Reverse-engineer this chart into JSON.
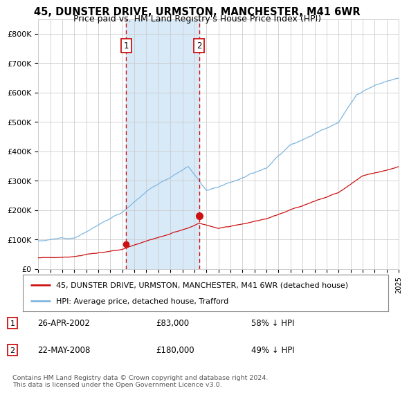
{
  "title": "45, DUNSTER DRIVE, URMSTON, MANCHESTER, M41 6WR",
  "subtitle": "Price paid vs. HM Land Registry's House Price Index (HPI)",
  "title_fontsize": 10.5,
  "subtitle_fontsize": 9,
  "x_start_year": 1995,
  "x_end_year": 2025,
  "ylim": [
    0,
    850000
  ],
  "yticks": [
    0,
    100000,
    200000,
    300000,
    400000,
    500000,
    600000,
    700000,
    800000
  ],
  "ytick_labels": [
    "£0",
    "£100K",
    "£200K",
    "£300K",
    "£400K",
    "£500K",
    "£600K",
    "£700K",
    "£800K"
  ],
  "transaction1": {
    "date_year": 2002.32,
    "price": 83000,
    "label": "1"
  },
  "transaction2": {
    "date_year": 2008.39,
    "price": 180000,
    "label": "2"
  },
  "hpi_line_color": "#7eb6e0",
  "price_line_color": "#cc1111",
  "shade_color": "#d8eaf8",
  "dashed_line_color": "#cc1111",
  "dot_color": "#cc1111",
  "grid_color": "#cccccc",
  "background_color": "#ffffff",
  "legend_entries": [
    "45, DUNSTER DRIVE, URMSTON, MANCHESTER, M41 6WR (detached house)",
    "HPI: Average price, detached house, Trafford"
  ],
  "table_rows": [
    {
      "num": "1",
      "date": "26-APR-2002",
      "price": "£83,000",
      "note": "58% ↓ HPI"
    },
    {
      "num": "2",
      "date": "22-MAY-2008",
      "price": "£180,000",
      "note": "49% ↓ HPI"
    }
  ],
  "footnote": "Contains HM Land Registry data © Crown copyright and database right 2024.\nThis data is licensed under the Open Government Licence v3.0."
}
